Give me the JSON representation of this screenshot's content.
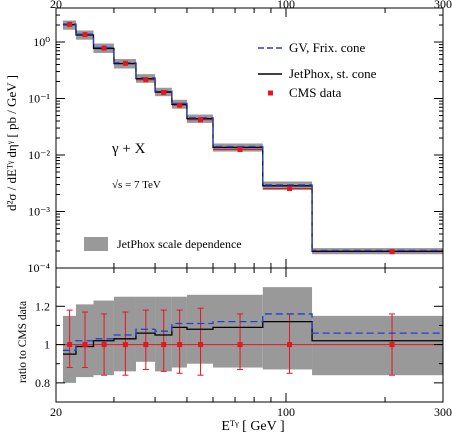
{
  "chart_data": [
    {
      "type": "line",
      "panel": "main",
      "x_scale": "log",
      "y_scale": "log",
      "xlim": [
        20,
        300
      ],
      "ylim": [
        0.0001,
        4
      ],
      "x_edges": [
        21,
        23,
        26,
        30,
        35,
        40,
        45,
        50,
        60,
        85,
        120,
        300
      ],
      "ylabel": "d²σ / dEᵀᵞ dηᵞ  [ pb / GeV ]",
      "y_ticks": [
        {
          "value": 1,
          "label": "10⁰"
        },
        {
          "value": 0.1,
          "label": "10⁻¹"
        },
        {
          "value": 0.01,
          "label": "10⁻²"
        },
        {
          "value": 0.001,
          "label": "10⁻³"
        },
        {
          "value": 0.0001,
          "label": "10⁻⁴"
        }
      ],
      "x_ticks": [
        {
          "value": 20,
          "label": "20"
        },
        {
          "value": 100,
          "label": "100"
        },
        {
          "value": 300,
          "label": "300"
        }
      ],
      "annotations": {
        "process": "γ + X",
        "energy": "√s = 7 TeV"
      },
      "series": [
        {
          "name": "GV, Frix. cone",
          "style": "dashed-step",
          "color": "#1f3fd6",
          "values": [
            2.08,
            1.38,
            0.8,
            0.43,
            0.232,
            0.135,
            0.082,
            0.0455,
            0.0141,
            0.00295,
            0.000205
          ]
        },
        {
          "name": "JetPhox, st. cone",
          "style": "solid-step",
          "color": "#000000",
          "values": [
            2.02,
            1.33,
            0.77,
            0.415,
            0.225,
            0.131,
            0.079,
            0.044,
            0.0136,
            0.00285,
            0.000198
          ]
        },
        {
          "name": "CMS data",
          "style": "points",
          "color": "#e8141e",
          "x": [
            22,
            24.5,
            28,
            32.5,
            37.5,
            42.5,
            47.5,
            55,
            72.5,
            102.5,
            210
          ],
          "values": [
            2.05,
            1.35,
            0.78,
            0.42,
            0.215,
            0.128,
            0.076,
            0.042,
            0.0125,
            0.00255,
            0.000195
          ]
        }
      ],
      "band": {
        "name": "JetPhox scale dependence",
        "color": "#999999",
        "low": [
          1.65,
          1.1,
          0.64,
          0.34,
          0.19,
          0.11,
          0.066,
          0.037,
          0.0115,
          0.0024,
          0.000175
        ],
        "high": [
          2.4,
          1.6,
          0.94,
          0.5,
          0.27,
          0.155,
          0.095,
          0.052,
          0.016,
          0.0034,
          0.000225
        ]
      }
    },
    {
      "type": "line",
      "panel": "ratio",
      "x_scale": "log",
      "xlim": [
        20,
        300
      ],
      "ylim": [
        0.7,
        1.4
      ],
      "ylabel": "ratio to CMS data",
      "xlabel": "Eᵀᵞ  [ GeV ]",
      "y_ticks": [
        {
          "value": 0.8,
          "label": "0.8"
        },
        {
          "value": 1,
          "label": "1"
        },
        {
          "value": 1.2,
          "label": "1.2"
        }
      ],
      "x_ticks": [
        {
          "value": 20,
          "label": "20"
        },
        {
          "value": 100,
          "label": "100"
        },
        {
          "value": 300,
          "label": "300"
        }
      ],
      "x_edges": [
        21,
        23,
        26,
        30,
        35,
        40,
        45,
        50,
        60,
        85,
        120,
        300
      ],
      "series": [
        {
          "name": "GV, Frix. cone",
          "style": "dashed-step",
          "color": "#1f3fd6",
          "values": [
            0.97,
            1.02,
            1.03,
            1.05,
            1.08,
            1.07,
            1.11,
            1.11,
            1.12,
            1.16,
            1.06
          ]
        },
        {
          "name": "JetPhox, st. cone",
          "style": "solid-step",
          "color": "#000000",
          "values": [
            0.95,
            0.99,
            1.02,
            1.03,
            1.06,
            1.05,
            1.09,
            1.08,
            1.09,
            1.12,
            1.02
          ]
        },
        {
          "name": "CMS data",
          "style": "points",
          "color": "#e8141e",
          "x": [
            22,
            24.5,
            28,
            32.5,
            37.5,
            42.5,
            47.5,
            55,
            72.5,
            102.5,
            210
          ],
          "values": [
            1,
            1,
            1,
            1,
            1,
            1,
            1,
            1,
            1,
            1,
            1
          ],
          "err_low": [
            0.12,
            0.12,
            0.16,
            0.16,
            0.13,
            0.14,
            0.15,
            0.16,
            0.13,
            0.15,
            0.16
          ],
          "err_high": [
            0.18,
            0.17,
            0.16,
            0.17,
            0.18,
            0.18,
            0.18,
            0.19,
            0.16,
            0.16,
            0.16
          ]
        }
      ],
      "band": {
        "name": "JetPhox scale dependence",
        "color": "#999999",
        "low": [
          0.8,
          0.83,
          0.84,
          0.86,
          0.91,
          0.86,
          0.88,
          0.9,
          0.88,
          0.87,
          0.84
        ],
        "high": [
          1.15,
          1.21,
          1.23,
          1.25,
          1.25,
          1.25,
          1.25,
          1.26,
          1.26,
          1.3,
          1.15
        ]
      }
    }
  ]
}
